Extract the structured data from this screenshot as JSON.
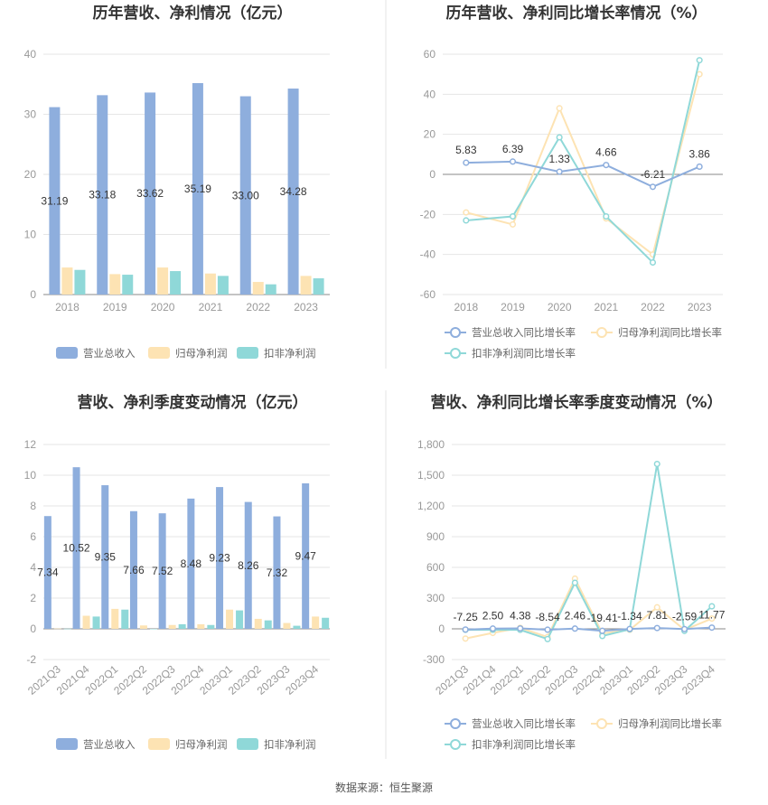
{
  "source": "数据来源：恒生聚源",
  "colors": {
    "revenue_bar": "#8eaedd",
    "net_bar": "#fde3b3",
    "deduct_bar": "#8fd8d8",
    "revenue_line": "#8eaedd",
    "net_line": "#fde3b3",
    "deduct_line": "#8fd8d8"
  },
  "chart_data": [
    {
      "id": "annual-bar",
      "type": "bar",
      "title": "历年营收、净利情况（亿元）",
      "categories": [
        "2018",
        "2019",
        "2020",
        "2021",
        "2022",
        "2023"
      ],
      "ylim": [
        0,
        40
      ],
      "yticks": [
        "0",
        "10",
        "20",
        "30",
        "40"
      ],
      "label_series": 0,
      "series": [
        {
          "name": "营业总收入",
          "values": [
            31.19,
            33.18,
            33.62,
            35.19,
            33.0,
            34.28
          ],
          "labels": [
            "31.19",
            "33.18",
            "33.62",
            "35.19",
            "33.00",
            "34.28"
          ]
        },
        {
          "name": "归母净利润",
          "values": [
            4.5,
            3.4,
            4.5,
            3.5,
            2.1,
            3.1
          ]
        },
        {
          "name": "扣非净利润",
          "values": [
            4.1,
            3.3,
            3.9,
            3.1,
            1.7,
            2.7
          ]
        }
      ],
      "legend": "bottom"
    },
    {
      "id": "annual-line",
      "type": "line",
      "title": "历年营收、净利同比增长率情况（%）",
      "categories": [
        "2018",
        "2019",
        "2020",
        "2021",
        "2022",
        "2023"
      ],
      "ylim": [
        -60,
        60
      ],
      "yticks": [
        "-60",
        "-40",
        "-20",
        "0",
        "20",
        "40",
        "60"
      ],
      "label_series": 0,
      "series": [
        {
          "name": "营业总收入同比增长率",
          "values": [
            5.83,
            6.39,
            1.33,
            4.66,
            -6.21,
            3.86
          ],
          "labels": [
            "5.83",
            "6.39",
            "1.33",
            "4.66",
            "-6.21",
            "3.86"
          ]
        },
        {
          "name": "归母净利润同比增长率",
          "values": [
            -19,
            -25,
            33,
            -22,
            -40,
            50
          ]
        },
        {
          "name": "扣非净利润同比增长率",
          "values": [
            -23,
            -21,
            18.5,
            -21,
            -44,
            57
          ]
        }
      ],
      "legend": "bottom"
    },
    {
      "id": "quarter-bar",
      "type": "bar",
      "title": "营收、净利季度变动情况（亿元）",
      "categories": [
        "2021Q3",
        "2021Q4",
        "2022Q1",
        "2022Q2",
        "2022Q3",
        "2022Q4",
        "2023Q1",
        "2023Q2",
        "2023Q3",
        "2023Q4"
      ],
      "ylim": [
        -2,
        12
      ],
      "yticks": [
        "-2",
        "0",
        "2",
        "4",
        "6",
        "8",
        "10",
        "12"
      ],
      "label_series": 0,
      "series": [
        {
          "name": "营业总收入",
          "values": [
            7.34,
            10.52,
            9.35,
            7.66,
            7.52,
            8.48,
            9.23,
            8.26,
            7.32,
            9.47
          ],
          "labels": [
            "7.34",
            "10.52",
            "9.35",
            "7.66",
            "7.52",
            "8.48",
            "9.23",
            "8.26",
            "7.32",
            "9.47"
          ]
        },
        {
          "name": "归母净利润",
          "values": [
            0.02,
            0.85,
            1.3,
            0.22,
            0.25,
            0.3,
            1.25,
            0.65,
            0.38,
            0.8
          ]
        },
        {
          "name": "扣非净利润",
          "values": [
            0.01,
            0.8,
            1.25,
            0.0,
            0.3,
            0.25,
            1.2,
            0.55,
            0.2,
            0.72
          ]
        }
      ],
      "legend": "bottom"
    },
    {
      "id": "quarter-line",
      "type": "line",
      "title": "营收、净利同比增长率季度变动情况（%）",
      "categories": [
        "2021Q3",
        "2021Q4",
        "2022Q1",
        "2022Q2",
        "2022Q3",
        "2022Q4",
        "2023Q1",
        "2023Q2",
        "2023Q3",
        "2023Q4"
      ],
      "ylim": [
        -300,
        1800
      ],
      "yticks": [
        "-300",
        "0",
        "300",
        "600",
        "900",
        "1,200",
        "1,500",
        "1,800"
      ],
      "label_series": 0,
      "series": [
        {
          "name": "营业总收入同比增长率",
          "values": [
            -7.25,
            2.5,
            4.38,
            -8.54,
            2.46,
            -19.41,
            -1.34,
            7.81,
            -2.59,
            11.77
          ],
          "labels": [
            "-7.25",
            "2.50",
            "4.38",
            "-8.54",
            "2.46",
            "-19.41",
            "-1.34",
            "7.81",
            "-2.59",
            "11.77"
          ]
        },
        {
          "name": "归母净利润同比增长率",
          "values": [
            -95,
            -40,
            10,
            -80,
            490,
            -45,
            -10,
            210,
            -10,
            100
          ]
        },
        {
          "name": "扣非净利润同比增长率",
          "values": [
            -10,
            -10,
            -10,
            -100,
            450,
            -70,
            -5,
            1610,
            -20,
            220
          ]
        }
      ],
      "legend": "bottom"
    }
  ]
}
